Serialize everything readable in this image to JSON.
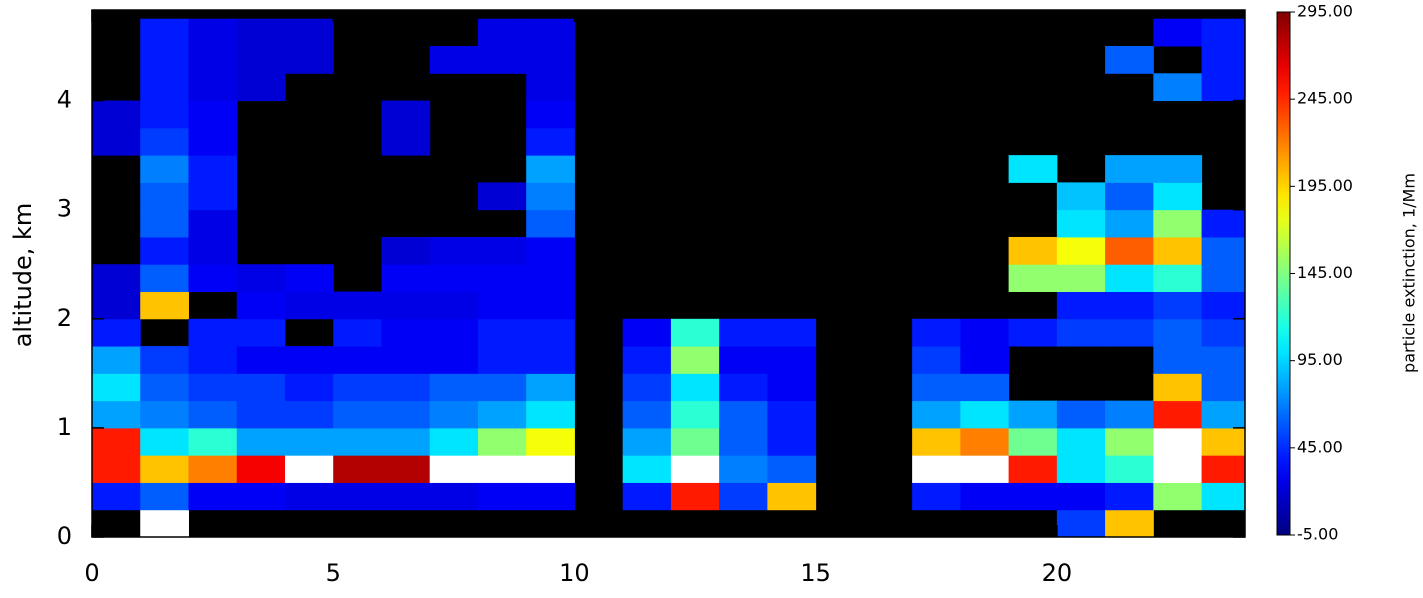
{
  "chart_data": {
    "type": "heatmap",
    "ylabel": "altitude, km",
    "colorbar_label": "particle extinction, 1/Mm",
    "colormap": "jet",
    "over_color": "#ffffff",
    "background": "#000000",
    "xlim": [
      0,
      23.9
    ],
    "ylim": [
      0,
      4.83
    ],
    "xticks": [
      0,
      5,
      10,
      15,
      20
    ],
    "yticks": [
      0,
      1,
      2,
      3,
      4
    ],
    "colorbar_lim": [
      -5,
      295
    ],
    "colorbar_ticks": [
      {
        "value": -5,
        "label": "-5.00"
      },
      {
        "value": 45,
        "label": "45.00"
      },
      {
        "value": 95,
        "label": "95.00"
      },
      {
        "value": 145,
        "label": "145.00"
      },
      {
        "value": 195,
        "label": "195.00"
      },
      {
        "value": 245,
        "label": "245.00"
      },
      {
        "value": 295,
        "label": "295.00"
      }
    ],
    "x_bins": [
      0,
      1,
      2,
      3,
      4,
      5,
      6,
      7,
      8,
      9,
      10,
      11,
      12,
      13,
      14,
      15,
      16,
      17,
      18,
      19,
      20,
      21,
      22,
      23,
      23.9
    ],
    "y_bins": [
      0,
      0.25,
      0.5,
      0.75,
      1,
      1.25,
      1.5,
      1.75,
      2,
      2.25,
      2.5,
      2.75,
      3,
      3.25,
      3.5,
      3.75,
      4,
      4.25,
      4.5,
      4.75
    ],
    "z": [
      [
        null,
        40,
        250,
        250,
        80,
        100,
        80,
        40,
        20,
        20,
        null,
        null,
        null,
        null,
        20,
        20,
        null,
        null,
        null
      ],
      [
        300,
        60,
        200,
        100,
        70,
        60,
        50,
        null,
        200,
        60,
        40,
        60,
        60,
        70,
        50,
        40,
        40,
        40,
        40
      ],
      [
        null,
        30,
        220,
        120,
        60,
        50,
        40,
        40,
        null,
        30,
        25,
        25,
        40,
        40,
        30,
        30,
        25,
        25,
        25
      ],
      [
        null,
        30,
        260,
        80,
        50,
        50,
        30,
        40,
        30,
        25,
        null,
        null,
        null,
        null,
        null,
        null,
        20,
        20,
        20
      ],
      [
        null,
        25,
        300,
        80,
        50,
        40,
        30,
        null,
        25,
        30,
        null,
        null,
        null,
        null,
        null,
        null,
        null,
        20,
        20
      ],
      [
        null,
        25,
        280,
        80,
        60,
        50,
        30,
        40,
        25,
        null,
        null,
        null,
        null,
        null,
        null,
        null,
        null,
        null,
        null
      ],
      [
        null,
        25,
        280,
        80,
        60,
        50,
        30,
        30,
        25,
        30,
        20,
        null,
        null,
        null,
        20,
        20,
        null,
        null,
        null
      ],
      [
        null,
        25,
        300,
        100,
        70,
        60,
        30,
        30,
        25,
        30,
        25,
        null,
        null,
        null,
        null,
        null,
        null,
        25,
        null
      ],
      [
        null,
        30,
        300,
        150,
        80,
        60,
        40,
        40,
        30,
        30,
        25,
        null,
        20,
        null,
        null,
        null,
        null,
        25,
        25
      ],
      [
        null,
        30,
        300,
        180,
        100,
        80,
        40,
        40,
        30,
        30,
        30,
        60,
        70,
        80,
        40,
        30,
        25,
        25,
        25
      ],
      [
        null,
        null,
        null,
        null,
        null,
        null,
        null,
        null,
        null,
        null,
        null,
        null,
        null,
        null,
        null,
        null,
        null,
        null,
        null
      ],
      [
        null,
        40,
        100,
        80,
        60,
        50,
        40,
        30,
        null,
        null,
        null,
        null,
        null,
        null,
        null,
        null,
        null,
        null,
        null
      ],
      [
        null,
        250,
        300,
        140,
        120,
        100,
        150,
        120,
        null,
        null,
        null,
        null,
        null,
        null,
        null,
        null,
        null,
        null,
        null
      ],
      [
        null,
        50,
        70,
        60,
        60,
        40,
        30,
        40,
        null,
        null,
        null,
        null,
        null,
        null,
        null,
        null,
        null,
        null,
        null
      ],
      [
        null,
        200,
        60,
        40,
        40,
        30,
        30,
        40,
        null,
        null,
        null,
        null,
        null,
        null,
        null,
        null,
        null,
        null,
        null
      ],
      [
        null,
        null,
        null,
        null,
        null,
        null,
        null,
        null,
        null,
        null,
        null,
        null,
        null,
        null,
        null,
        null,
        null,
        null,
        null
      ],
      [
        null,
        null,
        null,
        null,
        null,
        null,
        null,
        null,
        null,
        null,
        null,
        null,
        null,
        null,
        null,
        null,
        null,
        null,
        null
      ],
      [
        null,
        40,
        300,
        200,
        80,
        60,
        50,
        40,
        null,
        null,
        null,
        null,
        null,
        null,
        null,
        null,
        null,
        null,
        null
      ],
      [
        null,
        30,
        300,
        220,
        100,
        60,
        30,
        30,
        null,
        null,
        null,
        null,
        null,
        null,
        null,
        null,
        null,
        null,
        null
      ],
      [
        null,
        30,
        250,
        140,
        80,
        null,
        null,
        40,
        null,
        150,
        200,
        null,
        null,
        100,
        null,
        null,
        null,
        null,
        null
      ],
      [
        50,
        30,
        100,
        100,
        60,
        null,
        null,
        50,
        40,
        150,
        180,
        100,
        90,
        null,
        null,
        null,
        null,
        null,
        null
      ],
      [
        200,
        40,
        120,
        150,
        70,
        null,
        null,
        50,
        40,
        100,
        230,
        80,
        60,
        80,
        null,
        null,
        null,
        60,
        null
      ],
      [
        null,
        150,
        300,
        300,
        250,
        200,
        60,
        60,
        50,
        120,
        200,
        150,
        100,
        80,
        null,
        null,
        70,
        null,
        30
      ],
      [
        null,
        100,
        250,
        200,
        80,
        60,
        60,
        50,
        40,
        60,
        60,
        40,
        null,
        null,
        null,
        null,
        40,
        40,
        40
      ]
    ]
  }
}
